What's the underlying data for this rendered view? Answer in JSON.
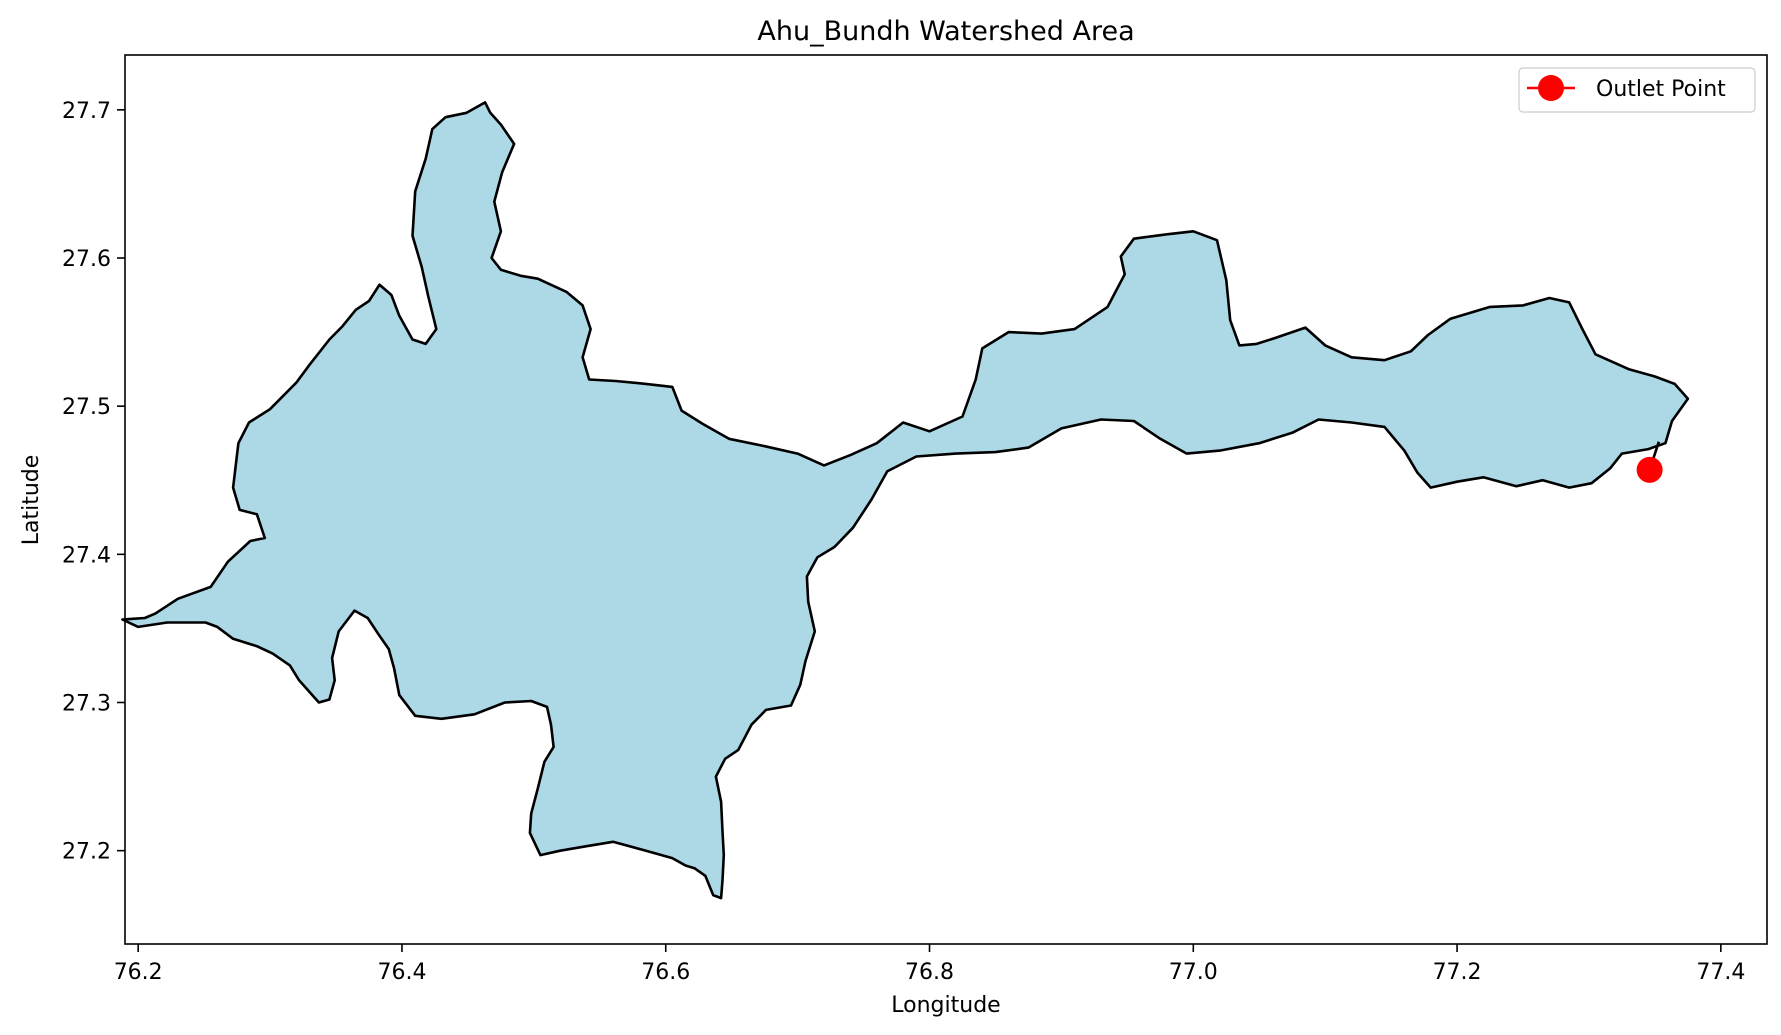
{
  "chart_data": {
    "type": "map",
    "title": "Ahu_Bundh Watershed Area",
    "xlabel": "Longitude",
    "ylabel": "Latitude",
    "xlim": [
      76.19,
      77.435
    ],
    "ylim": [
      27.137,
      27.737
    ],
    "x_ticks": [
      76.2,
      76.4,
      76.6,
      76.8,
      77.0,
      77.2,
      77.4
    ],
    "x_tick_labels": [
      "76.2",
      "76.4",
      "76.6",
      "76.8",
      "77.0",
      "77.2",
      "77.4"
    ],
    "y_ticks": [
      27.2,
      27.3,
      27.4,
      27.5,
      27.6,
      27.7
    ],
    "y_tick_labels": [
      "27.2",
      "27.3",
      "27.4",
      "27.5",
      "27.6",
      "27.7"
    ],
    "grid": false,
    "legend_position": "top-right",
    "colors": {
      "watershed_fill": "#add8e6",
      "boundary": "#000000",
      "outlet": "#ff0000"
    },
    "watershed_boundary": [
      [
        76.251,
        27.354
      ],
      [
        76.26,
        27.351
      ],
      [
        76.272,
        27.343
      ],
      [
        76.29,
        27.338
      ],
      [
        76.302,
        27.333
      ],
      [
        76.315,
        27.325
      ],
      [
        76.322,
        27.315
      ],
      [
        76.332,
        27.305
      ],
      [
        76.337,
        27.3
      ],
      [
        76.345,
        27.302
      ],
      [
        76.349,
        27.315
      ],
      [
        76.347,
        27.33
      ],
      [
        76.352,
        27.348
      ],
      [
        76.364,
        27.362
      ],
      [
        76.374,
        27.357
      ],
      [
        76.383,
        27.345
      ],
      [
        76.39,
        27.336
      ],
      [
        76.394,
        27.323
      ],
      [
        76.398,
        27.305
      ],
      [
        76.41,
        27.291
      ],
      [
        76.43,
        27.289
      ],
      [
        76.455,
        27.292
      ],
      [
        76.478,
        27.3
      ],
      [
        76.498,
        27.301
      ],
      [
        76.51,
        27.297
      ],
      [
        76.513,
        27.285
      ],
      [
        76.515,
        27.27
      ],
      [
        76.508,
        27.26
      ],
      [
        76.503,
        27.242
      ],
      [
        76.498,
        27.225
      ],
      [
        76.497,
        27.212
      ],
      [
        76.505,
        27.197
      ],
      [
        76.52,
        27.2
      ],
      [
        76.54,
        27.203
      ],
      [
        76.56,
        27.206
      ],
      [
        76.585,
        27.2
      ],
      [
        76.605,
        27.195
      ],
      [
        76.615,
        27.19
      ],
      [
        76.622,
        27.188
      ],
      [
        76.63,
        27.183
      ],
      [
        76.636,
        27.17
      ],
      [
        76.642,
        27.168
      ],
      [
        76.643,
        27.18
      ],
      [
        76.644,
        27.197
      ],
      [
        76.643,
        27.213
      ],
      [
        76.642,
        27.233
      ],
      [
        76.638,
        27.25
      ],
      [
        76.645,
        27.262
      ],
      [
        76.655,
        27.268
      ],
      [
        76.665,
        27.285
      ],
      [
        76.676,
        27.295
      ],
      [
        76.695,
        27.298
      ],
      [
        76.702,
        27.312
      ],
      [
        76.706,
        27.328
      ],
      [
        76.713,
        27.348
      ],
      [
        76.708,
        27.368
      ],
      [
        76.707,
        27.385
      ],
      [
        76.715,
        27.398
      ],
      [
        76.728,
        27.405
      ],
      [
        76.742,
        27.418
      ],
      [
        76.756,
        27.437
      ],
      [
        76.768,
        27.456
      ],
      [
        76.79,
        27.466
      ],
      [
        76.82,
        27.468
      ],
      [
        76.85,
        27.469
      ],
      [
        76.875,
        27.472
      ],
      [
        76.9,
        27.485
      ],
      [
        76.93,
        27.491
      ],
      [
        76.955,
        27.49
      ],
      [
        76.975,
        27.478
      ],
      [
        76.995,
        27.468
      ],
      [
        77.02,
        27.47
      ],
      [
        77.05,
        27.475
      ],
      [
        77.075,
        27.482
      ],
      [
        77.095,
        27.491
      ],
      [
        77.12,
        27.489
      ],
      [
        77.145,
        27.486
      ],
      [
        77.16,
        27.47
      ],
      [
        77.17,
        27.455
      ],
      [
        77.18,
        27.445
      ],
      [
        77.2,
        27.449
      ],
      [
        77.22,
        27.452
      ],
      [
        77.245,
        27.446
      ],
      [
        77.265,
        27.45
      ],
      [
        77.285,
        27.445
      ],
      [
        77.302,
        27.448
      ],
      [
        77.316,
        27.458
      ],
      [
        77.325,
        27.468
      ],
      [
        77.345,
        27.471
      ],
      [
        77.358,
        27.475
      ],
      [
        77.363,
        27.49
      ],
      [
        77.375,
        27.505
      ],
      [
        77.365,
        27.515
      ],
      [
        77.35,
        27.52
      ],
      [
        77.33,
        27.525
      ],
      [
        77.305,
        27.535
      ],
      [
        77.295,
        27.552
      ],
      [
        77.285,
        27.57
      ],
      [
        77.27,
        27.573
      ],
      [
        77.25,
        27.568
      ],
      [
        77.225,
        27.567
      ],
      [
        77.195,
        27.559
      ],
      [
        77.178,
        27.548
      ],
      [
        77.165,
        27.537
      ],
      [
        77.145,
        27.531
      ],
      [
        77.12,
        27.533
      ],
      [
        77.1,
        27.541
      ],
      [
        77.085,
        27.553
      ],
      [
        77.062,
        27.546
      ],
      [
        77.048,
        27.542
      ],
      [
        77.035,
        27.541
      ],
      [
        77.028,
        27.558
      ],
      [
        77.025,
        27.585
      ],
      [
        77.018,
        27.612
      ],
      [
        77.0,
        27.618
      ],
      [
        76.98,
        27.616
      ],
      [
        76.955,
        27.613
      ],
      [
        76.945,
        27.601
      ],
      [
        76.948,
        27.589
      ],
      [
        76.935,
        27.567
      ],
      [
        76.91,
        27.552
      ],
      [
        76.885,
        27.549
      ],
      [
        76.86,
        27.55
      ],
      [
        76.84,
        27.539
      ],
      [
        76.835,
        27.518
      ],
      [
        76.825,
        27.493
      ],
      [
        76.8,
        27.483
      ],
      [
        76.78,
        27.489
      ],
      [
        76.76,
        27.475
      ],
      [
        76.74,
        27.467
      ],
      [
        76.72,
        27.46
      ],
      [
        76.7,
        27.468
      ],
      [
        76.675,
        27.473
      ],
      [
        76.648,
        27.478
      ],
      [
        76.628,
        27.488
      ],
      [
        76.612,
        27.497
      ],
      [
        76.605,
        27.513
      ],
      [
        76.585,
        27.515
      ],
      [
        76.562,
        27.517
      ],
      [
        76.542,
        27.518
      ],
      [
        76.537,
        27.533
      ],
      [
        76.543,
        27.552
      ],
      [
        76.537,
        27.568
      ],
      [
        76.525,
        27.577
      ],
      [
        76.503,
        27.586
      ],
      [
        76.49,
        27.588
      ],
      [
        76.475,
        27.592
      ],
      [
        76.468,
        27.6
      ],
      [
        76.475,
        27.618
      ],
      [
        76.47,
        27.638
      ],
      [
        76.476,
        27.658
      ],
      [
        76.485,
        27.677
      ],
      [
        76.475,
        27.69
      ],
      [
        76.467,
        27.698
      ],
      [
        76.463,
        27.705
      ],
      [
        76.449,
        27.698
      ],
      [
        76.433,
        27.695
      ],
      [
        76.423,
        27.687
      ],
      [
        76.418,
        27.667
      ],
      [
        76.41,
        27.645
      ],
      [
        76.408,
        27.615
      ],
      [
        76.415,
        27.594
      ],
      [
        76.42,
        27.574
      ],
      [
        76.426,
        27.552
      ],
      [
        76.418,
        27.542
      ],
      [
        76.408,
        27.545
      ],
      [
        76.398,
        27.561
      ],
      [
        76.392,
        27.575
      ],
      [
        76.383,
        27.582
      ],
      [
        76.375,
        27.571
      ],
      [
        76.365,
        27.565
      ],
      [
        76.355,
        27.554
      ],
      [
        76.345,
        27.545
      ],
      [
        76.33,
        27.528
      ],
      [
        76.32,
        27.516
      ],
      [
        76.3,
        27.498
      ],
      [
        76.284,
        27.489
      ],
      [
        76.276,
        27.475
      ],
      [
        76.272,
        27.445
      ],
      [
        76.277,
        27.43
      ],
      [
        76.29,
        27.427
      ],
      [
        76.296,
        27.411
      ],
      [
        76.285,
        27.409
      ],
      [
        76.268,
        27.395
      ],
      [
        76.255,
        27.378
      ],
      [
        76.23,
        27.37
      ],
      [
        76.213,
        27.36
      ],
      [
        76.205,
        27.357
      ],
      [
        76.188,
        27.356
      ],
      [
        76.2,
        27.351
      ],
      [
        76.222,
        27.354
      ],
      [
        76.251,
        27.354
      ]
    ],
    "outlet_point": {
      "x": 77.346,
      "y": 27.457
    },
    "outlet_connector": [
      [
        77.353,
        27.476
      ],
      [
        77.346,
        27.457
      ]
    ],
    "legend": {
      "entries": [
        "Outlet Point"
      ]
    }
  }
}
